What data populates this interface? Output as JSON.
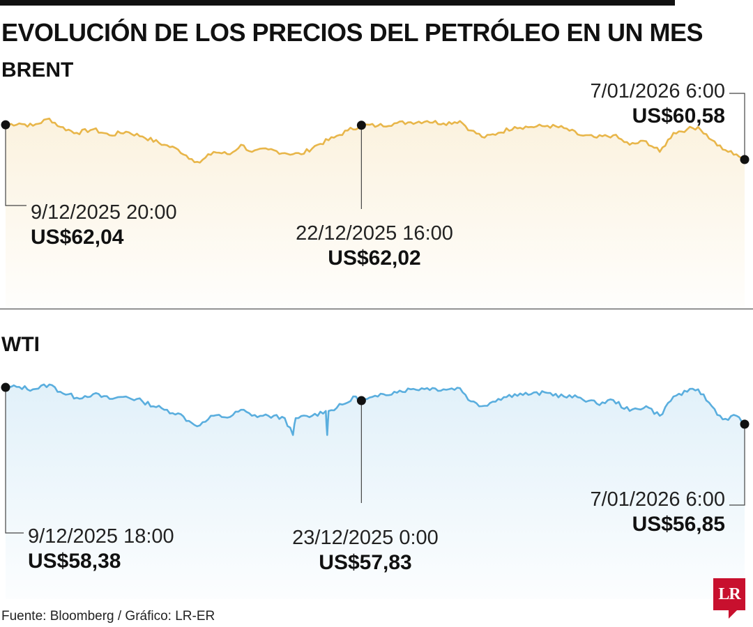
{
  "title": "EVOLUCIÓN DE LOS PRECIOS DEL PETRÓLEO EN UN MES",
  "source": "Fuente: Bloomberg / Gráfico: LR-ER",
  "logo_text": "LR",
  "colors": {
    "brent": "#e8b64a",
    "wti": "#5aaede",
    "accent": "#c8102e"
  },
  "chart_data": [
    {
      "type": "line",
      "name": "BRENT",
      "unit": "US$",
      "title": "BRENT",
      "ylim": [
        58.5,
        62.6
      ],
      "points": [
        {
          "t": 0,
          "v": 62.04
        },
        {
          "t": 0.5,
          "v": 62.1
        },
        {
          "t": 1,
          "v": 62.0
        },
        {
          "t": 1.6,
          "v": 62.3
        },
        {
          "t": 2,
          "v": 61.95
        },
        {
          "t": 2.6,
          "v": 61.7
        },
        {
          "t": 3.2,
          "v": 61.85
        },
        {
          "t": 3.8,
          "v": 61.6
        },
        {
          "t": 4.4,
          "v": 61.75
        },
        {
          "t": 5,
          "v": 61.55
        },
        {
          "t": 5.8,
          "v": 61.2
        },
        {
          "t": 6.3,
          "v": 61.0
        },
        {
          "t": 6.8,
          "v": 60.6
        },
        {
          "t": 7.1,
          "v": 60.45
        },
        {
          "t": 7.6,
          "v": 60.9
        },
        {
          "t": 8.2,
          "v": 60.8
        },
        {
          "t": 8.6,
          "v": 61.2
        },
        {
          "t": 9.0,
          "v": 60.9
        },
        {
          "t": 9.6,
          "v": 61.0
        },
        {
          "t": 10.2,
          "v": 60.85
        },
        {
          "t": 10.8,
          "v": 60.8
        },
        {
          "t": 11.4,
          "v": 61.2
        },
        {
          "t": 12.0,
          "v": 61.5
        },
        {
          "t": 12.5,
          "v": 61.8
        },
        {
          "t": 13,
          "v": 62.02
        },
        {
          "t": 13.6,
          "v": 62.0
        },
        {
          "t": 14.2,
          "v": 62.1
        },
        {
          "t": 14.8,
          "v": 62.15
        },
        {
          "t": 15.4,
          "v": 62.2
        },
        {
          "t": 16.0,
          "v": 62.1
        },
        {
          "t": 16.6,
          "v": 62.2
        },
        {
          "t": 17.0,
          "v": 61.8
        },
        {
          "t": 17.5,
          "v": 61.5
        },
        {
          "t": 18.0,
          "v": 61.7
        },
        {
          "t": 18.6,
          "v": 61.95
        },
        {
          "t": 19.2,
          "v": 61.95
        },
        {
          "t": 19.8,
          "v": 62.0
        },
        {
          "t": 20.4,
          "v": 61.9
        },
        {
          "t": 21.0,
          "v": 61.6
        },
        {
          "t": 21.6,
          "v": 61.5
        },
        {
          "t": 22.2,
          "v": 61.6
        },
        {
          "t": 22.8,
          "v": 61.2
        },
        {
          "t": 23.4,
          "v": 61.35
        },
        {
          "t": 23.9,
          "v": 60.9
        },
        {
          "t": 24.4,
          "v": 61.7
        },
        {
          "t": 24.9,
          "v": 61.85
        },
        {
          "t": 25.3,
          "v": 61.95
        },
        {
          "t": 25.8,
          "v": 61.4
        },
        {
          "t": 26.2,
          "v": 61.0
        },
        {
          "t": 26.7,
          "v": 60.8
        },
        {
          "t": 27,
          "v": 60.58
        }
      ],
      "annotations": [
        {
          "date": "9/12/2025 20:00",
          "price": "US$62,04"
        },
        {
          "date": "22/12/2025 16:00",
          "price": "US$62,02"
        },
        {
          "date": "7/01/2026 6:00",
          "price": "US$60,58"
        }
      ]
    },
    {
      "type": "line",
      "name": "WTI",
      "unit": "US$",
      "title": "WTI",
      "ylim": [
        54.5,
        58.7
      ],
      "points": [
        {
          "t": 0,
          "v": 58.38
        },
        {
          "t": 0.5,
          "v": 58.4
        },
        {
          "t": 1,
          "v": 58.3
        },
        {
          "t": 1.6,
          "v": 58.5
        },
        {
          "t": 2,
          "v": 58.2
        },
        {
          "t": 2.6,
          "v": 57.95
        },
        {
          "t": 3.2,
          "v": 58.1
        },
        {
          "t": 3.8,
          "v": 57.9
        },
        {
          "t": 4.4,
          "v": 58.0
        },
        {
          "t": 5,
          "v": 57.8
        },
        {
          "t": 5.8,
          "v": 57.45
        },
        {
          "t": 6.3,
          "v": 57.3
        },
        {
          "t": 6.8,
          "v": 56.9
        },
        {
          "t": 7.1,
          "v": 56.8
        },
        {
          "t": 7.6,
          "v": 57.2
        },
        {
          "t": 8.2,
          "v": 57.15
        },
        {
          "t": 8.6,
          "v": 57.45
        },
        {
          "t": 9.0,
          "v": 57.2
        },
        {
          "t": 9.6,
          "v": 57.2
        },
        {
          "t": 10.2,
          "v": 57.1
        },
        {
          "t": 10.5,
          "v": 56.4
        },
        {
          "t": 10.6,
          "v": 57.1
        },
        {
          "t": 11.2,
          "v": 57.2
        },
        {
          "t": 11.7,
          "v": 57.4
        },
        {
          "t": 11.75,
          "v": 56.4
        },
        {
          "t": 11.8,
          "v": 57.4
        },
        {
          "t": 12.4,
          "v": 57.7
        },
        {
          "t": 12.8,
          "v": 58.0
        },
        {
          "t": 13,
          "v": 57.83
        },
        {
          "t": 13.6,
          "v": 58.0
        },
        {
          "t": 14.2,
          "v": 58.2
        },
        {
          "t": 14.8,
          "v": 58.3
        },
        {
          "t": 15.4,
          "v": 58.35
        },
        {
          "t": 16.0,
          "v": 58.3
        },
        {
          "t": 16.6,
          "v": 58.35
        },
        {
          "t": 17.0,
          "v": 57.8
        },
        {
          "t": 17.4,
          "v": 57.6
        },
        {
          "t": 18.0,
          "v": 57.9
        },
        {
          "t": 18.6,
          "v": 58.1
        },
        {
          "t": 19.2,
          "v": 58.1
        },
        {
          "t": 19.8,
          "v": 58.15
        },
        {
          "t": 20.4,
          "v": 58.0
        },
        {
          "t": 21.0,
          "v": 57.95
        },
        {
          "t": 21.6,
          "v": 57.7
        },
        {
          "t": 22.2,
          "v": 57.85
        },
        {
          "t": 22.8,
          "v": 57.4
        },
        {
          "t": 23.4,
          "v": 57.6
        },
        {
          "t": 23.9,
          "v": 57.2
        },
        {
          "t": 24.4,
          "v": 58.0
        },
        {
          "t": 24.9,
          "v": 58.2
        },
        {
          "t": 25.3,
          "v": 58.3
        },
        {
          "t": 25.8,
          "v": 57.6
        },
        {
          "t": 26.2,
          "v": 57.05
        },
        {
          "t": 26.7,
          "v": 57.2
        },
        {
          "t": 27,
          "v": 56.85
        }
      ],
      "annotations": [
        {
          "date": "9/12/2025 18:00",
          "price": "US$58,38"
        },
        {
          "date": "23/12/2025 0:00",
          "price": "US$57,83"
        },
        {
          "date": "7/01/2026 6:00",
          "price": "US$56,85"
        }
      ]
    }
  ]
}
